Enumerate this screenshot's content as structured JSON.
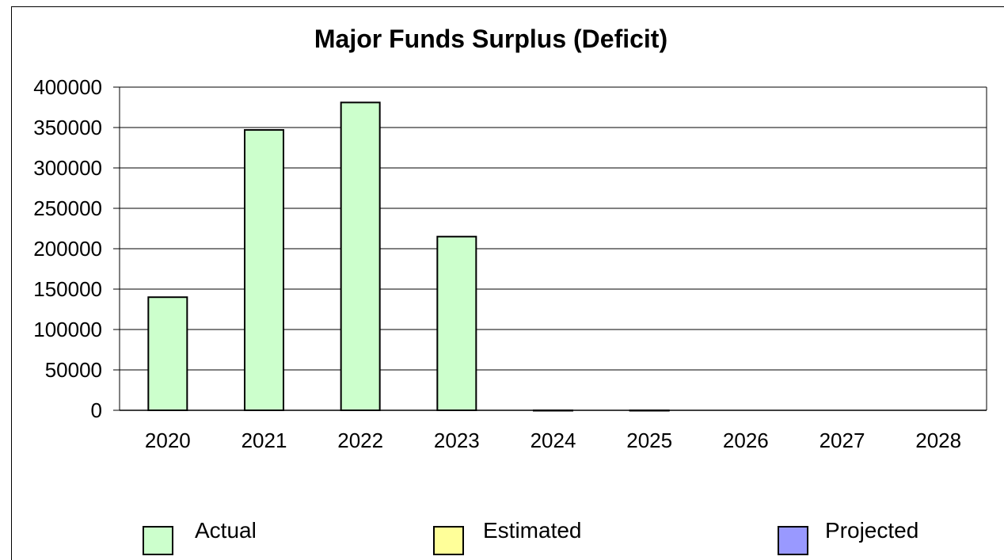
{
  "chart_data": {
    "type": "bar",
    "title": "Major Funds Surplus (Deficit)",
    "xlabel": "",
    "ylabel": "",
    "categories": [
      "2020",
      "2021",
      "2022",
      "2023",
      "2024",
      "2025",
      "2026",
      "2027",
      "2028"
    ],
    "series": [
      {
        "name": "Actual",
        "color": "#ccffcc",
        "values": [
          140000,
          347000,
          381000,
          215000,
          0,
          0,
          null,
          null,
          null
        ]
      },
      {
        "name": "Estimated",
        "color": "#ffff99",
        "values": [
          null,
          null,
          null,
          null,
          null,
          null,
          null,
          null,
          null
        ]
      },
      {
        "name": "Projected",
        "color": "#9999ff",
        "values": [
          null,
          null,
          null,
          null,
          null,
          null,
          null,
          null,
          null
        ]
      }
    ],
    "ylim": [
      0,
      400000
    ],
    "yticks": [
      "0",
      "50000",
      "100000",
      "150000",
      "200000",
      "250000",
      "300000",
      "350000",
      "400000"
    ],
    "grid": true,
    "legend_position": "bottom"
  }
}
